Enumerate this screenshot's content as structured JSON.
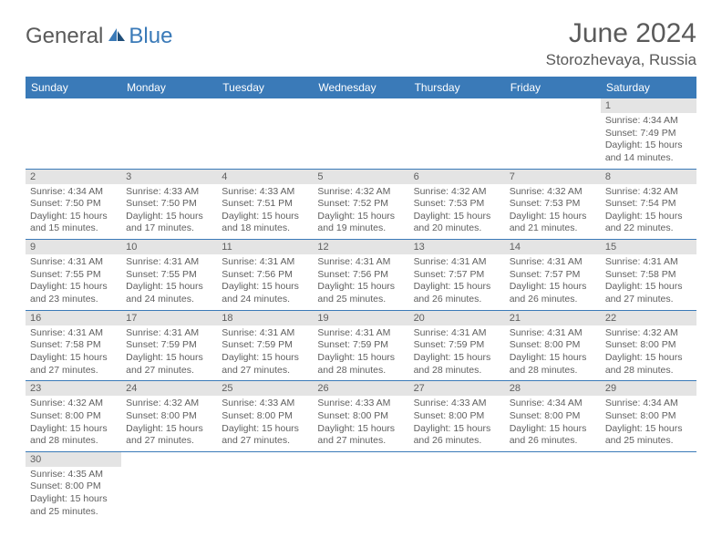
{
  "brand": {
    "general": "General",
    "blue": "Blue"
  },
  "title": "June 2024",
  "location": "Storozhevaya, Russia",
  "colors": {
    "header_bg": "#3a7ab8",
    "header_text": "#ffffff",
    "daynum_bg": "#e4e4e4",
    "text": "#606060",
    "rule": "#3a7ab8"
  },
  "fonts": {
    "title_pt": 30,
    "location_pt": 17,
    "header_pt": 12,
    "daynum_pt": 11,
    "body_pt": 10.5
  },
  "day_headers": [
    "Sunday",
    "Monday",
    "Tuesday",
    "Wednesday",
    "Thursday",
    "Friday",
    "Saturday"
  ],
  "weeks": [
    [
      {
        "day": "",
        "sunrise": "",
        "sunset": "",
        "daylight": ""
      },
      {
        "day": "",
        "sunrise": "",
        "sunset": "",
        "daylight": ""
      },
      {
        "day": "",
        "sunrise": "",
        "sunset": "",
        "daylight": ""
      },
      {
        "day": "",
        "sunrise": "",
        "sunset": "",
        "daylight": ""
      },
      {
        "day": "",
        "sunrise": "",
        "sunset": "",
        "daylight": ""
      },
      {
        "day": "",
        "sunrise": "",
        "sunset": "",
        "daylight": ""
      },
      {
        "day": "1",
        "sunrise": "Sunrise: 4:34 AM",
        "sunset": "Sunset: 7:49 PM",
        "daylight": "Daylight: 15 hours and 14 minutes."
      }
    ],
    [
      {
        "day": "2",
        "sunrise": "Sunrise: 4:34 AM",
        "sunset": "Sunset: 7:50 PM",
        "daylight": "Daylight: 15 hours and 15 minutes."
      },
      {
        "day": "3",
        "sunrise": "Sunrise: 4:33 AM",
        "sunset": "Sunset: 7:50 PM",
        "daylight": "Daylight: 15 hours and 17 minutes."
      },
      {
        "day": "4",
        "sunrise": "Sunrise: 4:33 AM",
        "sunset": "Sunset: 7:51 PM",
        "daylight": "Daylight: 15 hours and 18 minutes."
      },
      {
        "day": "5",
        "sunrise": "Sunrise: 4:32 AM",
        "sunset": "Sunset: 7:52 PM",
        "daylight": "Daylight: 15 hours and 19 minutes."
      },
      {
        "day": "6",
        "sunrise": "Sunrise: 4:32 AM",
        "sunset": "Sunset: 7:53 PM",
        "daylight": "Daylight: 15 hours and 20 minutes."
      },
      {
        "day": "7",
        "sunrise": "Sunrise: 4:32 AM",
        "sunset": "Sunset: 7:53 PM",
        "daylight": "Daylight: 15 hours and 21 minutes."
      },
      {
        "day": "8",
        "sunrise": "Sunrise: 4:32 AM",
        "sunset": "Sunset: 7:54 PM",
        "daylight": "Daylight: 15 hours and 22 minutes."
      }
    ],
    [
      {
        "day": "9",
        "sunrise": "Sunrise: 4:31 AM",
        "sunset": "Sunset: 7:55 PM",
        "daylight": "Daylight: 15 hours and 23 minutes."
      },
      {
        "day": "10",
        "sunrise": "Sunrise: 4:31 AM",
        "sunset": "Sunset: 7:55 PM",
        "daylight": "Daylight: 15 hours and 24 minutes."
      },
      {
        "day": "11",
        "sunrise": "Sunrise: 4:31 AM",
        "sunset": "Sunset: 7:56 PM",
        "daylight": "Daylight: 15 hours and 24 minutes."
      },
      {
        "day": "12",
        "sunrise": "Sunrise: 4:31 AM",
        "sunset": "Sunset: 7:56 PM",
        "daylight": "Daylight: 15 hours and 25 minutes."
      },
      {
        "day": "13",
        "sunrise": "Sunrise: 4:31 AM",
        "sunset": "Sunset: 7:57 PM",
        "daylight": "Daylight: 15 hours and 26 minutes."
      },
      {
        "day": "14",
        "sunrise": "Sunrise: 4:31 AM",
        "sunset": "Sunset: 7:57 PM",
        "daylight": "Daylight: 15 hours and 26 minutes."
      },
      {
        "day": "15",
        "sunrise": "Sunrise: 4:31 AM",
        "sunset": "Sunset: 7:58 PM",
        "daylight": "Daylight: 15 hours and 27 minutes."
      }
    ],
    [
      {
        "day": "16",
        "sunrise": "Sunrise: 4:31 AM",
        "sunset": "Sunset: 7:58 PM",
        "daylight": "Daylight: 15 hours and 27 minutes."
      },
      {
        "day": "17",
        "sunrise": "Sunrise: 4:31 AM",
        "sunset": "Sunset: 7:59 PM",
        "daylight": "Daylight: 15 hours and 27 minutes."
      },
      {
        "day": "18",
        "sunrise": "Sunrise: 4:31 AM",
        "sunset": "Sunset: 7:59 PM",
        "daylight": "Daylight: 15 hours and 27 minutes."
      },
      {
        "day": "19",
        "sunrise": "Sunrise: 4:31 AM",
        "sunset": "Sunset: 7:59 PM",
        "daylight": "Daylight: 15 hours and 28 minutes."
      },
      {
        "day": "20",
        "sunrise": "Sunrise: 4:31 AM",
        "sunset": "Sunset: 7:59 PM",
        "daylight": "Daylight: 15 hours and 28 minutes."
      },
      {
        "day": "21",
        "sunrise": "Sunrise: 4:31 AM",
        "sunset": "Sunset: 8:00 PM",
        "daylight": "Daylight: 15 hours and 28 minutes."
      },
      {
        "day": "22",
        "sunrise": "Sunrise: 4:32 AM",
        "sunset": "Sunset: 8:00 PM",
        "daylight": "Daylight: 15 hours and 28 minutes."
      }
    ],
    [
      {
        "day": "23",
        "sunrise": "Sunrise: 4:32 AM",
        "sunset": "Sunset: 8:00 PM",
        "daylight": "Daylight: 15 hours and 28 minutes."
      },
      {
        "day": "24",
        "sunrise": "Sunrise: 4:32 AM",
        "sunset": "Sunset: 8:00 PM",
        "daylight": "Daylight: 15 hours and 27 minutes."
      },
      {
        "day": "25",
        "sunrise": "Sunrise: 4:33 AM",
        "sunset": "Sunset: 8:00 PM",
        "daylight": "Daylight: 15 hours and 27 minutes."
      },
      {
        "day": "26",
        "sunrise": "Sunrise: 4:33 AM",
        "sunset": "Sunset: 8:00 PM",
        "daylight": "Daylight: 15 hours and 27 minutes."
      },
      {
        "day": "27",
        "sunrise": "Sunrise: 4:33 AM",
        "sunset": "Sunset: 8:00 PM",
        "daylight": "Daylight: 15 hours and 26 minutes."
      },
      {
        "day": "28",
        "sunrise": "Sunrise: 4:34 AM",
        "sunset": "Sunset: 8:00 PM",
        "daylight": "Daylight: 15 hours and 26 minutes."
      },
      {
        "day": "29",
        "sunrise": "Sunrise: 4:34 AM",
        "sunset": "Sunset: 8:00 PM",
        "daylight": "Daylight: 15 hours and 25 minutes."
      }
    ],
    [
      {
        "day": "30",
        "sunrise": "Sunrise: 4:35 AM",
        "sunset": "Sunset: 8:00 PM",
        "daylight": "Daylight: 15 hours and 25 minutes."
      },
      {
        "day": "",
        "sunrise": "",
        "sunset": "",
        "daylight": ""
      },
      {
        "day": "",
        "sunrise": "",
        "sunset": "",
        "daylight": ""
      },
      {
        "day": "",
        "sunrise": "",
        "sunset": "",
        "daylight": ""
      },
      {
        "day": "",
        "sunrise": "",
        "sunset": "",
        "daylight": ""
      },
      {
        "day": "",
        "sunrise": "",
        "sunset": "",
        "daylight": ""
      },
      {
        "day": "",
        "sunrise": "",
        "sunset": "",
        "daylight": ""
      }
    ]
  ]
}
